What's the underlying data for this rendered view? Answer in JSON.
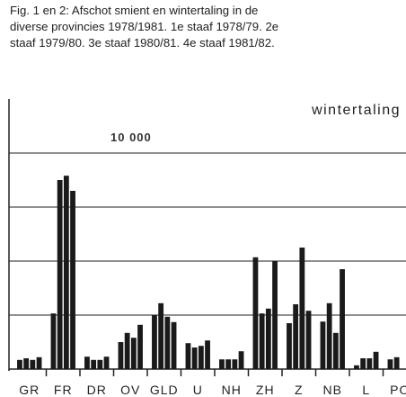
{
  "chart_data": {
    "type": "bar",
    "title": [
      "Fig. 1 en 2: Afschot smient en wintertaling in de",
      "diverse provincies 1978/1981. 1e staaf 1978/79. 2e",
      "staaf 1979/80. 3e staaf 1980/81. 4e staaf 1981/82."
    ],
    "subtitle": "wintertaling",
    "annotation": "10 000",
    "categories": [
      "GR",
      "FR",
      "DR",
      "OV",
      "GLD",
      "U",
      "NH",
      "ZH",
      "Z",
      "NB",
      "L",
      "PO"
    ],
    "series": [
      {
        "color": "#1a1a1a",
        "values": [
          1700,
          10300,
          2300,
          5000,
          10000,
          4800,
          1800,
          20700,
          8500,
          8800,
          700,
          1800
        ]
      },
      {
        "color": "#1a1a1a",
        "values": [
          2000,
          35000,
          1700,
          6700,
          12200,
          4000,
          1800,
          10300,
          12000,
          12200,
          2000,
          2200
        ]
      },
      {
        "color": "#1a1a1a",
        "values": [
          1700,
          35800,
          1700,
          5800,
          9700,
          4300,
          1800,
          11200,
          22500,
          6700,
          2000,
          null
        ]
      },
      {
        "color": "#1a1a1a",
        "values": [
          2200,
          33000,
          2300,
          8200,
          8700,
          5300,
          3300,
          20000,
          10800,
          18500,
          3200,
          null
        ]
      }
    ],
    "ylim": [
      0,
      50000
    ],
    "yticks": [
      0,
      10000,
      20000,
      30000,
      40000
    ],
    "grid": true
  }
}
